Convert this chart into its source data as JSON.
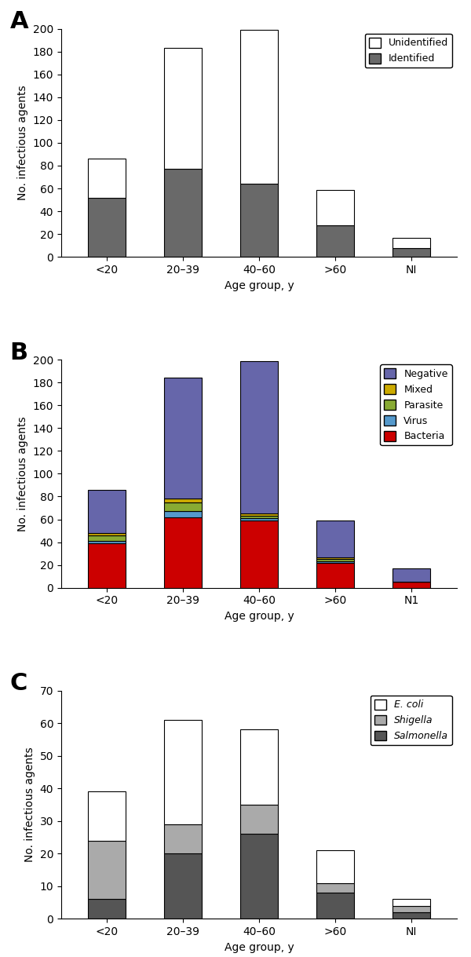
{
  "age_groups": [
    "<20",
    "20–39",
    "40–60",
    ">60",
    "NI"
  ],
  "age_groups_B": [
    "<20",
    "20–39",
    "40–60",
    ">60",
    "N1"
  ],
  "A_identified": [
    52,
    77,
    64,
    28,
    8
  ],
  "A_unidentified": [
    34,
    106,
    135,
    31,
    9
  ],
  "B_bacteria": [
    39,
    62,
    59,
    22,
    5
  ],
  "B_virus": [
    2,
    5,
    2,
    1,
    0
  ],
  "B_parasite": [
    5,
    8,
    2,
    2,
    0
  ],
  "B_mixed": [
    2,
    3,
    2,
    2,
    0
  ],
  "B_negative": [
    38,
    106,
    134,
    32,
    12
  ],
  "C_salmonella": [
    6,
    20,
    26,
    8,
    2
  ],
  "C_shigella": [
    18,
    9,
    9,
    3,
    2
  ],
  "C_ecoli": [
    15,
    32,
    23,
    10,
    2
  ],
  "color_gray_dark": "#696969",
  "color_white": "#ffffff",
  "color_bacteria": "#cc0000",
  "color_virus": "#5599cc",
  "color_parasite": "#88aa33",
  "color_mixed": "#ccaa00",
  "color_negative": "#6666aa",
  "color_salmonella": "#555555",
  "color_shigella": "#aaaaaa",
  "color_ecoli": "#ffffff",
  "panel_A_ylim": [
    0,
    200
  ],
  "panel_B_ylim": [
    0,
    200
  ],
  "panel_C_ylim": [
    0,
    70
  ],
  "ylabel": "No. infectious agents",
  "xlabel": "Age group, y",
  "fig_width": 6.0,
  "fig_height": 12.19,
  "dpi": 100
}
